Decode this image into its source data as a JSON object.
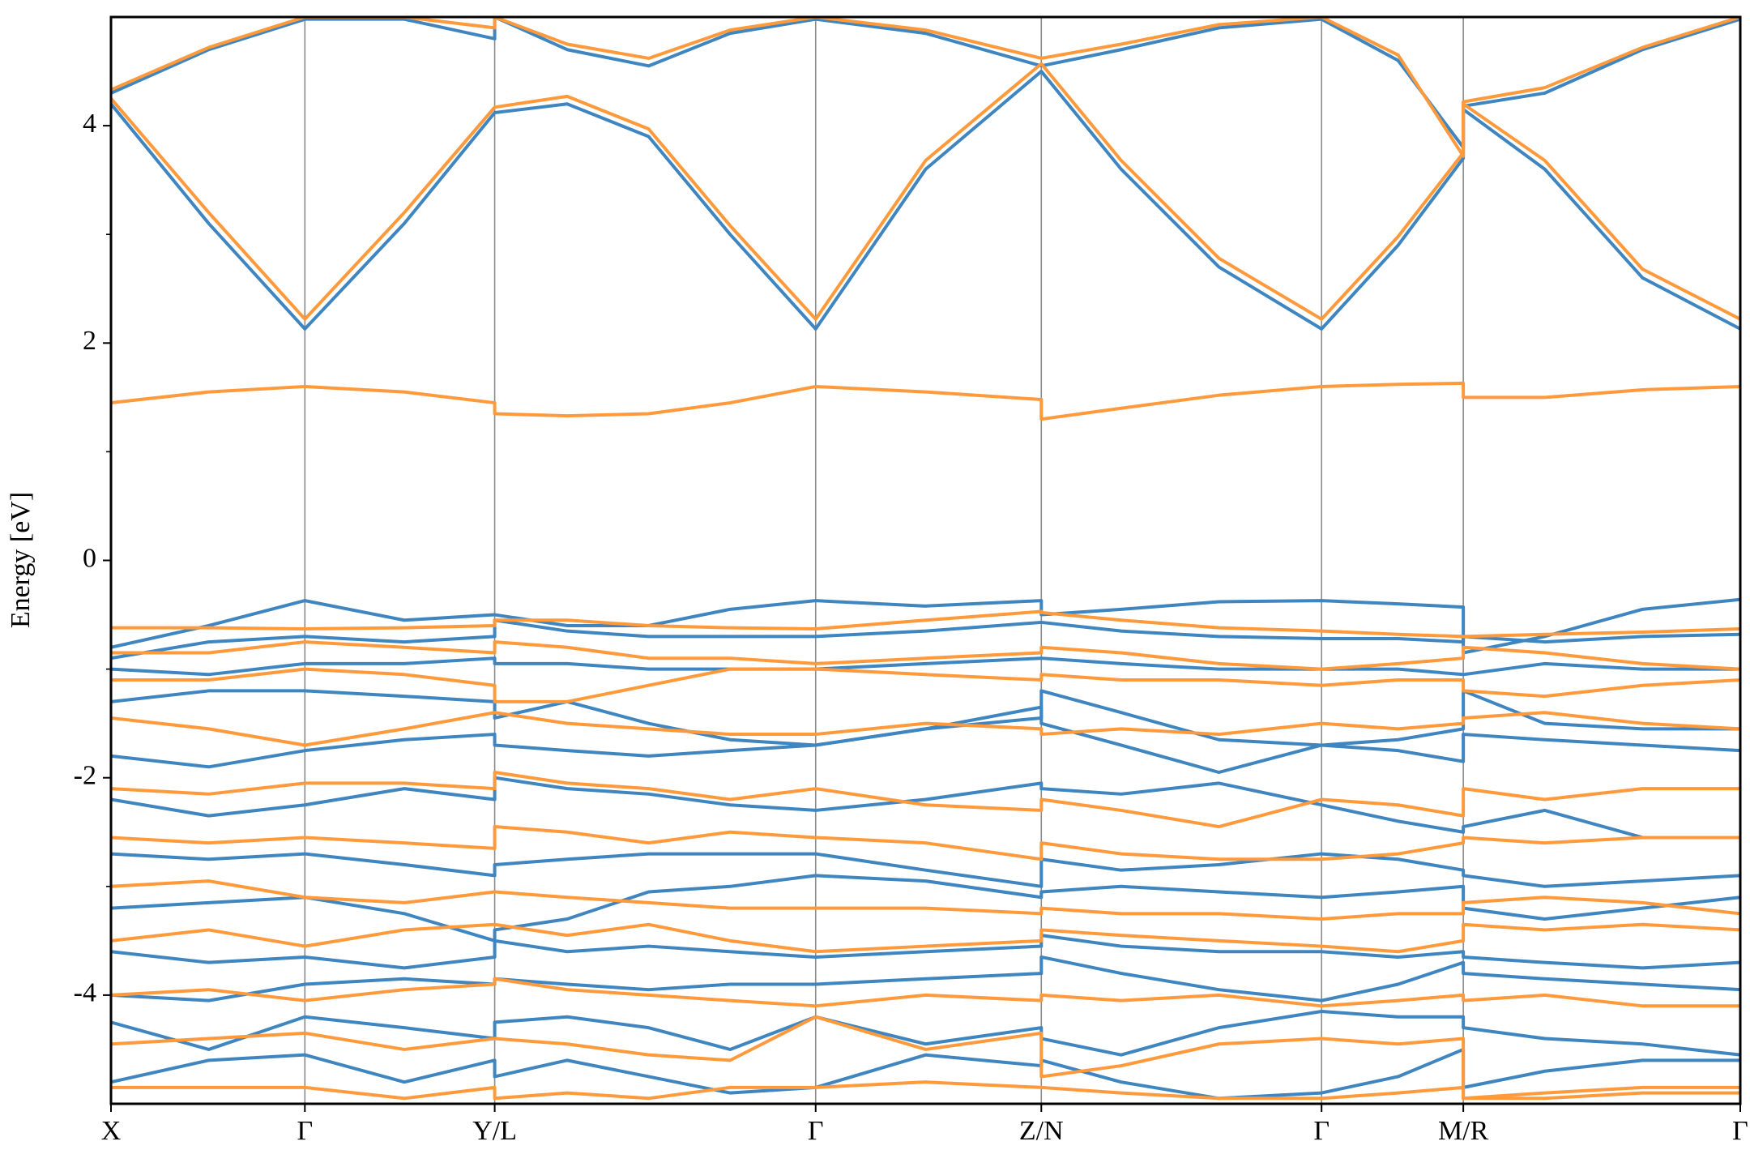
{
  "chart_data": {
    "type": "line",
    "ylabel": "Energy [eV]",
    "xlim": [
      0,
      1
    ],
    "ylim": [
      -5,
      5
    ],
    "yticks": [
      -4,
      -2,
      0,
      2,
      4
    ],
    "yminorticks": [
      -3,
      -1,
      1,
      3
    ],
    "xticks": [
      {
        "value": 0,
        "label": "X"
      },
      {
        "value": 0.119,
        "label": "Γ"
      },
      {
        "value": 0.2355,
        "label": "Y/L"
      },
      {
        "value": 0.4325,
        "label": "Γ"
      },
      {
        "value": 0.571,
        "label": "Z/N"
      },
      {
        "value": 0.743,
        "label": "Γ"
      },
      {
        "value": 0.83,
        "label": "M/R"
      },
      {
        "value": 1,
        "label": "Γ"
      }
    ],
    "grid": true,
    "x": [
      0,
      0.06,
      0.119,
      0.18,
      0.2355,
      0.2355,
      0.28,
      0.33,
      0.38,
      0.4325,
      0.5,
      0.571,
      0.571,
      0.62,
      0.68,
      0.743,
      0.79,
      0.83,
      0.83,
      0.88,
      0.94,
      1.0
    ],
    "series": [
      {
        "color": "#3f85bf",
        "values": [
          4.2,
          3.1,
          2.13,
          3.1,
          4.12,
          4.12,
          4.2,
          3.9,
          3.0,
          2.13,
          3.6,
          4.5,
          4.5,
          3.6,
          2.7,
          2.13,
          2.9,
          3.7,
          4.15,
          3.6,
          2.6,
          2.13
        ]
      },
      {
        "color": "#3f85bf",
        "values": [
          4.3,
          4.7,
          4.98,
          4.98,
          4.8,
          5.0,
          4.7,
          4.55,
          4.85,
          4.98,
          4.85,
          4.55,
          4.55,
          4.7,
          4.9,
          4.98,
          4.6,
          3.8,
          4.18,
          4.3,
          4.7,
          4.98
        ]
      },
      {
        "color": "#3f85bf",
        "values": [
          -0.8,
          -0.6,
          -0.37,
          -0.55,
          -0.5,
          -0.5,
          -0.6,
          -0.6,
          -0.45,
          -0.37,
          -0.42,
          -0.37,
          -0.5,
          -0.45,
          -0.38,
          -0.37,
          -0.4,
          -0.43,
          -0.85,
          -0.7,
          -0.45,
          -0.36
        ]
      },
      {
        "color": "#3f85bf",
        "values": [
          -0.9,
          -0.75,
          -0.7,
          -0.75,
          -0.7,
          -0.55,
          -0.65,
          -0.7,
          -0.7,
          -0.7,
          -0.65,
          -0.57,
          -0.57,
          -0.65,
          -0.7,
          -0.72,
          -0.72,
          -0.75,
          -0.7,
          -0.75,
          -0.7,
          -0.68
        ]
      },
      {
        "color": "#3f85bf",
        "values": [
          -1.0,
          -1.05,
          -0.95,
          -0.95,
          -0.9,
          -0.95,
          -0.95,
          -1.0,
          -1.0,
          -1.0,
          -0.95,
          -0.9,
          -0.9,
          -0.95,
          -1.0,
          -1.0,
          -1.0,
          -1.05,
          -1.05,
          -0.95,
          -1.0,
          -1.0
        ]
      },
      {
        "color": "#3f85bf",
        "values": [
          -1.3,
          -1.2,
          -1.2,
          -1.25,
          -1.3,
          -1.45,
          -1.3,
          -1.5,
          -1.65,
          -1.7,
          -1.55,
          -1.45,
          -1.2,
          -1.4,
          -1.65,
          -1.7,
          -1.65,
          -1.55,
          -1.2,
          -1.5,
          -1.55,
          -1.55
        ]
      },
      {
        "color": "#3f85bf",
        "values": [
          -1.8,
          -1.9,
          -1.75,
          -1.65,
          -1.6,
          -1.7,
          -1.75,
          -1.8,
          -1.75,
          -1.7,
          -1.55,
          -1.35,
          -1.5,
          -1.7,
          -1.95,
          -1.7,
          -1.75,
          -1.85,
          -1.6,
          -1.65,
          -1.7,
          -1.75
        ]
      },
      {
        "color": "#3f85bf",
        "values": [
          -2.2,
          -2.35,
          -2.25,
          -2.1,
          -2.2,
          -2.0,
          -2.1,
          -2.15,
          -2.25,
          -2.3,
          -2.2,
          -2.05,
          -2.1,
          -2.15,
          -2.05,
          -2.25,
          -2.4,
          -2.5,
          -2.45,
          -2.3,
          -2.55,
          -2.55
        ]
      },
      {
        "color": "#3f85bf",
        "values": [
          -2.7,
          -2.75,
          -2.7,
          -2.8,
          -2.9,
          -2.8,
          -2.75,
          -2.7,
          -2.7,
          -2.7,
          -2.85,
          -3.0,
          -2.75,
          -2.85,
          -2.8,
          -2.7,
          -2.75,
          -2.85,
          -2.9,
          -3.0,
          -2.95,
          -2.9
        ]
      },
      {
        "color": "#3f85bf",
        "values": [
          -3.2,
          -3.15,
          -3.1,
          -3.25,
          -3.5,
          -3.4,
          -3.3,
          -3.05,
          -3.0,
          -2.9,
          -2.95,
          -3.1,
          -3.05,
          -3.0,
          -3.05,
          -3.1,
          -3.05,
          -3.0,
          -3.2,
          -3.3,
          -3.2,
          -3.1
        ]
      },
      {
        "color": "#3f85bf",
        "values": [
          -3.6,
          -3.7,
          -3.65,
          -3.75,
          -3.65,
          -3.5,
          -3.6,
          -3.55,
          -3.6,
          -3.65,
          -3.6,
          -3.55,
          -3.45,
          -3.55,
          -3.6,
          -3.6,
          -3.65,
          -3.6,
          -3.65,
          -3.7,
          -3.75,
          -3.7
        ]
      },
      {
        "color": "#3f85bf",
        "values": [
          -4.0,
          -4.05,
          -3.9,
          -3.85,
          -3.9,
          -3.85,
          -3.9,
          -3.95,
          -3.9,
          -3.9,
          -3.85,
          -3.8,
          -3.65,
          -3.8,
          -3.95,
          -4.05,
          -3.9,
          -3.7,
          -3.8,
          -3.85,
          -3.9,
          -3.95
        ]
      },
      {
        "color": "#3f85bf",
        "values": [
          -4.25,
          -4.5,
          -4.2,
          -4.3,
          -4.4,
          -4.25,
          -4.2,
          -4.3,
          -4.5,
          -4.2,
          -4.45,
          -4.3,
          -4.4,
          -4.55,
          -4.3,
          -4.15,
          -4.2,
          -4.2,
          -4.3,
          -4.4,
          -4.45,
          -4.55
        ]
      },
      {
        "color": "#3f85bf",
        "values": [
          -4.8,
          -4.6,
          -4.55,
          -4.8,
          -4.6,
          -4.75,
          -4.6,
          -4.75,
          -4.9,
          -4.85,
          -4.55,
          -4.65,
          -4.6,
          -4.8,
          -4.95,
          -4.9,
          -4.75,
          -4.5,
          -4.85,
          -4.7,
          -4.6,
          -4.6
        ]
      },
      {
        "color": "#ff9a3c",
        "values": [
          4.25,
          3.2,
          2.22,
          3.2,
          4.17,
          4.17,
          4.27,
          3.97,
          3.08,
          2.22,
          3.68,
          4.57,
          4.57,
          3.68,
          2.78,
          2.22,
          2.98,
          3.75,
          4.2,
          3.68,
          2.68,
          2.22
        ]
      },
      {
        "color": "#ff9a3c",
        "values": [
          4.33,
          4.72,
          5.0,
          5.0,
          4.9,
          5.0,
          4.75,
          4.62,
          4.88,
          5.0,
          4.88,
          4.62,
          4.62,
          4.75,
          4.93,
          5.0,
          4.65,
          3.72,
          4.22,
          4.35,
          4.72,
          5.0
        ]
      },
      {
        "color": "#ff9a3c",
        "values": [
          1.45,
          1.55,
          1.6,
          1.55,
          1.45,
          1.35,
          1.33,
          1.35,
          1.45,
          1.6,
          1.55,
          1.48,
          1.3,
          1.4,
          1.52,
          1.6,
          1.62,
          1.63,
          1.5,
          1.5,
          1.57,
          1.6
        ]
      },
      {
        "color": "#ff9a3c",
        "values": [
          -0.62,
          -0.62,
          -0.63,
          -0.62,
          -0.6,
          -0.55,
          -0.55,
          -0.6,
          -0.62,
          -0.63,
          -0.55,
          -0.47,
          -0.48,
          -0.55,
          -0.62,
          -0.65,
          -0.68,
          -0.7,
          -0.7,
          -0.68,
          -0.66,
          -0.63
        ]
      },
      {
        "color": "#ff9a3c",
        "values": [
          -0.85,
          -0.85,
          -0.75,
          -0.8,
          -0.85,
          -0.75,
          -0.8,
          -0.9,
          -0.9,
          -0.95,
          -0.9,
          -0.85,
          -0.8,
          -0.85,
          -0.95,
          -1.0,
          -0.95,
          -0.9,
          -0.8,
          -0.85,
          -0.95,
          -1.0
        ]
      },
      {
        "color": "#ff9a3c",
        "values": [
          -1.1,
          -1.1,
          -1.0,
          -1.05,
          -1.15,
          -1.3,
          -1.3,
          -1.15,
          -1.0,
          -1.0,
          -1.05,
          -1.1,
          -1.05,
          -1.1,
          -1.1,
          -1.15,
          -1.1,
          -1.1,
          -1.2,
          -1.25,
          -1.15,
          -1.1
        ]
      },
      {
        "color": "#ff9a3c",
        "values": [
          -1.45,
          -1.55,
          -1.7,
          -1.55,
          -1.4,
          -1.4,
          -1.5,
          -1.55,
          -1.6,
          -1.6,
          -1.5,
          -1.55,
          -1.6,
          -1.55,
          -1.6,
          -1.5,
          -1.55,
          -1.5,
          -1.45,
          -1.4,
          -1.5,
          -1.55
        ]
      },
      {
        "color": "#ff9a3c",
        "values": [
          -2.1,
          -2.15,
          -2.05,
          -2.05,
          -2.1,
          -1.95,
          -2.05,
          -2.1,
          -2.2,
          -2.1,
          -2.25,
          -2.3,
          -2.2,
          -2.3,
          -2.45,
          -2.2,
          -2.25,
          -2.35,
          -2.1,
          -2.2,
          -2.1,
          -2.1
        ]
      },
      {
        "color": "#ff9a3c",
        "values": [
          -2.55,
          -2.6,
          -2.55,
          -2.6,
          -2.65,
          -2.45,
          -2.5,
          -2.6,
          -2.5,
          -2.55,
          -2.6,
          -2.75,
          -2.6,
          -2.7,
          -2.75,
          -2.75,
          -2.7,
          -2.6,
          -2.55,
          -2.6,
          -2.55,
          -2.55
        ]
      },
      {
        "color": "#ff9a3c",
        "values": [
          -3.0,
          -2.95,
          -3.1,
          -3.15,
          -3.05,
          -3.05,
          -3.1,
          -3.15,
          -3.2,
          -3.2,
          -3.2,
          -3.25,
          -3.2,
          -3.25,
          -3.25,
          -3.3,
          -3.25,
          -3.25,
          -3.15,
          -3.1,
          -3.15,
          -3.25
        ]
      },
      {
        "color": "#ff9a3c",
        "values": [
          -3.5,
          -3.4,
          -3.55,
          -3.4,
          -3.35,
          -3.35,
          -3.45,
          -3.35,
          -3.5,
          -3.6,
          -3.55,
          -3.5,
          -3.4,
          -3.45,
          -3.5,
          -3.55,
          -3.6,
          -3.5,
          -3.35,
          -3.4,
          -3.35,
          -3.4
        ]
      },
      {
        "color": "#ff9a3c",
        "values": [
          -4.0,
          -3.95,
          -4.05,
          -3.95,
          -3.9,
          -3.85,
          -3.95,
          -4.0,
          -4.05,
          -4.1,
          -4.0,
          -4.05,
          -4.0,
          -4.05,
          -4.0,
          -4.1,
          -4.05,
          -4.0,
          -4.05,
          -4.0,
          -4.1,
          -4.1
        ]
      },
      {
        "color": "#ff9a3c",
        "values": [
          -4.45,
          -4.4,
          -4.35,
          -4.5,
          -4.4,
          -4.4,
          -4.45,
          -4.55,
          -4.6,
          -4.2,
          -4.5,
          -4.35,
          -4.75,
          -4.65,
          -4.45,
          -4.4,
          -4.45,
          -4.4,
          -4.95,
          -4.9,
          -4.85,
          -4.85
        ]
      },
      {
        "color": "#ff9a3c",
        "values": [
          -4.85,
          -4.85,
          -4.85,
          -4.95,
          -4.85,
          -4.95,
          -4.9,
          -4.95,
          -4.85,
          -4.85,
          -4.8,
          -4.85,
          -4.85,
          -4.9,
          -4.95,
          -4.95,
          -4.9,
          -4.85,
          -4.95,
          -4.95,
          -4.9,
          -4.9
        ]
      }
    ]
  }
}
